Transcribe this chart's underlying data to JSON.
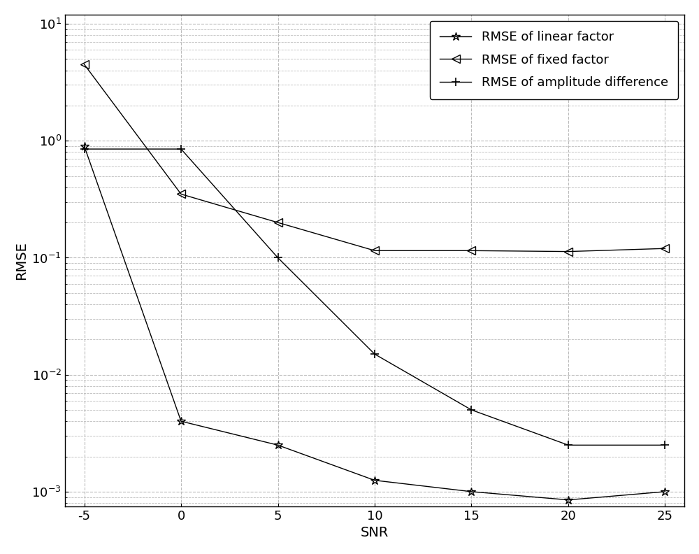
{
  "snr": [
    -5,
    0,
    5,
    10,
    15,
    20,
    25
  ],
  "linear_factor": [
    0.9,
    0.004,
    0.0025,
    0.00125,
    0.001,
    0.00085,
    0.001
  ],
  "fixed_factor": [
    4.5,
    0.35,
    0.2,
    0.115,
    0.115,
    0.113,
    0.12
  ],
  "amplitude_diff": [
    0.85,
    0.85,
    0.1,
    0.015,
    0.005,
    0.0025,
    0.0025
  ],
  "xlabel": "SNR",
  "ylabel": "RMSE",
  "legend_linear": "RMSE of linear factor",
  "legend_fixed": "RMSE of fixed factor",
  "legend_amplitude": "RMSE of amplitude difference",
  "xlim": [
    -6,
    26
  ],
  "ylim_bottom": 0.00075,
  "ylim_top": 12,
  "line_color": "#000000",
  "bg_color": "#ffffff",
  "grid_color": "#bbbbbb",
  "legend_fontsize": 13,
  "axis_label_fontsize": 14,
  "tick_fontsize": 13
}
